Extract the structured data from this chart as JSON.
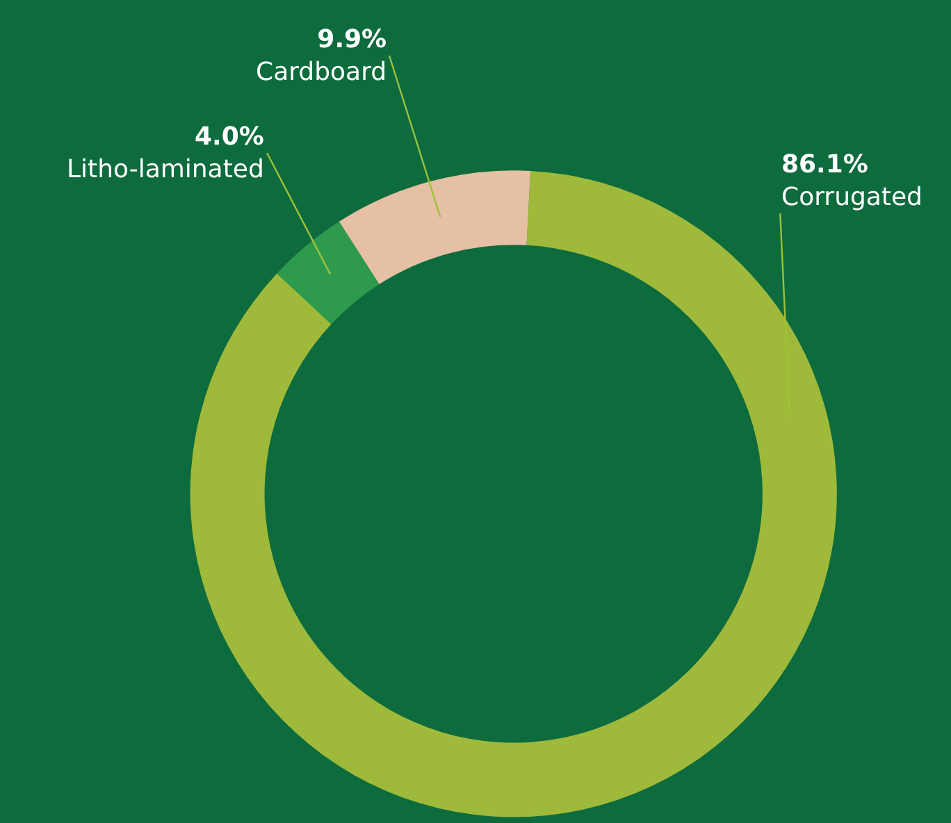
{
  "chart_data": {
    "type": "donut",
    "categories": [
      "Corrugated",
      "Litho-laminated",
      "Cardboard"
    ],
    "values": [
      86.1,
      4.0,
      9.9
    ],
    "value_labels": [
      "86.1%",
      "4.0%",
      "9.9%"
    ],
    "colors": [
      "#9fba3a",
      "#2e9a4e",
      "#e6c0a4"
    ],
    "legend": false
  }
}
